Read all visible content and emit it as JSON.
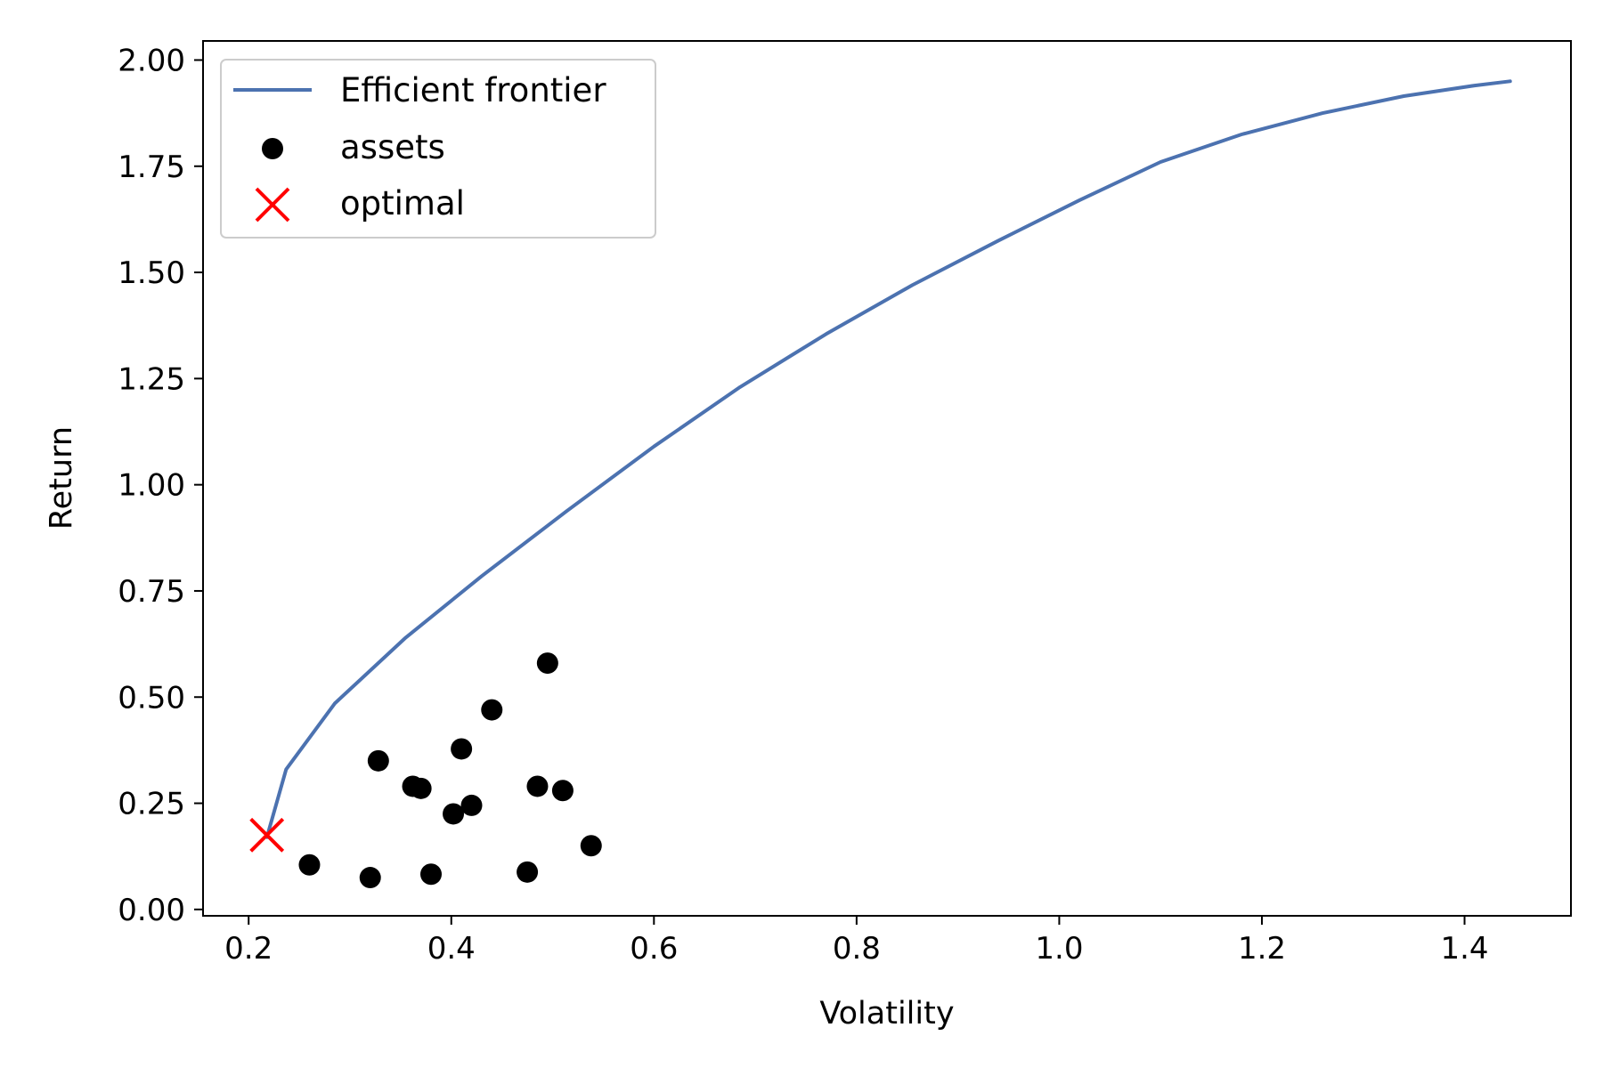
{
  "chart_data": {
    "type": "line+scatter",
    "title": "",
    "xlabel": "Volatility",
    "ylabel": "Return",
    "xlim": [
      0.155,
      1.505
    ],
    "ylim": [
      -0.015,
      2.045
    ],
    "xticks": [
      0.2,
      0.4,
      0.6,
      0.8,
      1.0,
      1.2,
      1.4
    ],
    "xtick_labels": [
      "0.2",
      "0.4",
      "0.6",
      "0.8",
      "1.0",
      "1.2",
      "1.4"
    ],
    "yticks": [
      0.0,
      0.25,
      0.5,
      0.75,
      1.0,
      1.25,
      1.5,
      1.75,
      2.0
    ],
    "ytick_labels": [
      "0.00",
      "0.25",
      "0.50",
      "0.75",
      "1.00",
      "1.25",
      "1.50",
      "1.75",
      "2.00"
    ],
    "grid": false,
    "legend_position": "top-left",
    "colors": {
      "frontier": "#4c72b0",
      "assets": "#000000",
      "optimal": "#ff0000"
    },
    "series": [
      {
        "name": "Efficient frontier",
        "kind": "line",
        "x": [
          0.218,
          0.237,
          0.285,
          0.355,
          0.43,
          0.515,
          0.6,
          0.685,
          0.77,
          0.855,
          0.94,
          1.02,
          1.1,
          1.18,
          1.26,
          1.34,
          1.41,
          1.445
        ],
        "y": [
          0.17,
          0.33,
          0.485,
          0.64,
          0.785,
          0.94,
          1.09,
          1.23,
          1.355,
          1.47,
          1.575,
          1.67,
          1.76,
          1.825,
          1.875,
          1.915,
          1.94,
          1.95
        ]
      },
      {
        "name": "assets",
        "kind": "scatter",
        "x": [
          0.26,
          0.32,
          0.328,
          0.362,
          0.37,
          0.38,
          0.402,
          0.41,
          0.42,
          0.44,
          0.475,
          0.485,
          0.495,
          0.51,
          0.538
        ],
        "y": [
          0.105,
          0.075,
          0.35,
          0.29,
          0.285,
          0.083,
          0.225,
          0.378,
          0.245,
          0.47,
          0.088,
          0.29,
          0.58,
          0.28,
          0.15
        ]
      },
      {
        "name": "optimal",
        "kind": "marker",
        "x": [
          0.218
        ],
        "y": [
          0.175
        ]
      }
    ]
  }
}
